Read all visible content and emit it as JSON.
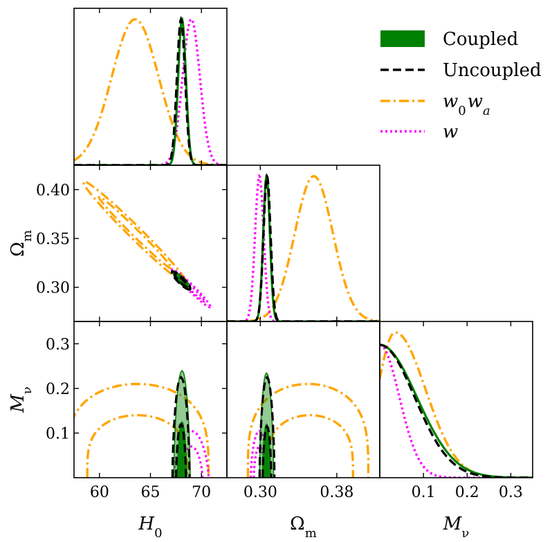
{
  "chart_data": {
    "type": "corner-plot",
    "title": "",
    "parameters": [
      {
        "key": "H0",
        "label_main": "H",
        "label_sub": "0",
        "range": [
          57.5,
          72.5
        ],
        "ticks": [
          60,
          65,
          70
        ],
        "tick_labels": [
          "60",
          "65",
          "70"
        ]
      },
      {
        "key": "Om",
        "label_main": "Ω",
        "label_sub": "m",
        "range": [
          0.265,
          0.425
        ],
        "ticks": [
          0.3,
          0.38
        ],
        "tick_labels": [
          "0.30",
          "0.38"
        ],
        "y_ticks": [
          0.3,
          0.35,
          0.4
        ],
        "y_tick_labels": [
          "0.30",
          "0.35",
          "0.40"
        ]
      },
      {
        "key": "Mnu",
        "label_main": "M",
        "label_sub": "ν",
        "range": [
          0.0,
          0.35
        ],
        "ticks": [
          0.1,
          0.2,
          0.3
        ],
        "tick_labels": [
          "0.1",
          "0.2",
          "0.3"
        ],
        "y_ticks": [
          0.1,
          0.2,
          0.3
        ],
        "y_tick_labels": [
          "0.1",
          "0.2",
          "0.3"
        ]
      }
    ],
    "legend": {
      "placement": "top-right",
      "entries": [
        {
          "label": "Coupled",
          "style": "filled",
          "color": "#008000"
        },
        {
          "label": "Uncoupled",
          "style": "dashed",
          "color": "#000000"
        },
        {
          "label_main": "w",
          "label_sub1": "0",
          "label_mid": "w",
          "label_sub2": "a",
          "style": "dash-dot",
          "color": "#FFA500"
        },
        {
          "label": "w",
          "style": "dotted",
          "color": "#FF00FF"
        }
      ]
    },
    "series": [
      {
        "name": "Coupled",
        "color": "#008000",
        "H0": {
          "mean": 68.1,
          "sigma": 0.38
        },
        "Om": {
          "mean": 0.3065,
          "sigma": 0.0035
        },
        "Mnu": {
          "type": "halfnormal",
          "peak": 0.318,
          "sigma": 0.085
        },
        "H0_Om": {
          "rho": -0.97
        },
        "H0_Mnu": {
          "c68": 0.125,
          "c95": 0.24
        },
        "Om_Mnu": {
          "c68": 0.12,
          "c95": 0.235
        }
      },
      {
        "name": "Uncoupled",
        "color": "#000000",
        "H0": {
          "mean": 68.0,
          "sigma": 0.4
        },
        "Om": {
          "mean": 0.307,
          "sigma": 0.0037
        },
        "Mnu": {
          "type": "halfnormal",
          "peak": 0.318,
          "sigma": 0.08
        },
        "H0_Om": {
          "rho": -0.97
        },
        "H0_Mnu": {
          "c68": 0.12,
          "c95": 0.225
        },
        "Om_Mnu": {
          "c68": 0.115,
          "c95": 0.225
        }
      },
      {
        "name": "w0wa",
        "color": "#FFA500",
        "H0": {
          "mean": 63.5,
          "sigma": 2.3
        },
        "Om": {
          "mean": 0.356,
          "sigma": 0.02
        },
        "Mnu": {
          "type": "lognormal",
          "peak": 0.318,
          "mode": 0.035,
          "sigma_right": 0.07,
          "sigma_left": 0.04
        },
        "H0_Om": {
          "rho": -0.99
        },
        "H0_Mnu": {
          "c68_center": 63.7,
          "c68_halfwidth": 4.9,
          "c68_top": 0.14,
          "c95_center": 63.7,
          "c95_halfwidth": 7.0,
          "c95_top": 0.21
        },
        "Om_Mnu": {
          "c68_center": 0.352,
          "c68_halfwidth": 0.045,
          "c68_top": 0.14,
          "c95_center": 0.35,
          "c95_halfwidth": 0.063,
          "c95_top": 0.21
        }
      },
      {
        "name": "w",
        "color": "#FF00FF",
        "H0": {
          "mean": 69.0,
          "sigma": 0.85
        },
        "Om": {
          "mean": 0.299,
          "sigma": 0.0045
        },
        "Mnu": {
          "type": "halfnormal",
          "peak": 0.318,
          "sigma": 0.045
        },
        "H0_Om": {
          "rho": -0.98
        },
        "H0_Mnu": {
          "c68": 0.07,
          "c95": 0.105
        },
        "Om_Mnu": {
          "c68": 0.07,
          "c95": 0.105
        }
      }
    ]
  }
}
